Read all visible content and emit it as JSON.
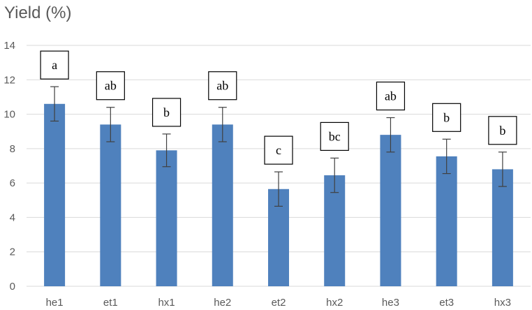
{
  "chart_data": {
    "type": "bar",
    "ylabel": "Yield (%)",
    "categories": [
      "he1",
      "et1",
      "hx1",
      "he2",
      "et2",
      "hx2",
      "he3",
      "et3",
      "hx3"
    ],
    "values": [
      10.6,
      9.4,
      7.9,
      9.4,
      5.65,
      6.45,
      8.8,
      7.55,
      6.8
    ],
    "errors": [
      1.0,
      1.0,
      0.95,
      1.0,
      1.0,
      1.0,
      1.0,
      1.0,
      1.0
    ],
    "annotations": [
      "a",
      "ab",
      "b",
      "ab",
      "c",
      "bc",
      "ab",
      "b",
      "b"
    ],
    "ylim": [
      0,
      14
    ],
    "yticks": [
      "0",
      "2",
      "4",
      "6",
      "8",
      "10",
      "12",
      "14"
    ],
    "grid": true,
    "colors": {
      "bar": "#4f81bd",
      "grid": "#d9d9d9",
      "text": "#595959"
    }
  }
}
